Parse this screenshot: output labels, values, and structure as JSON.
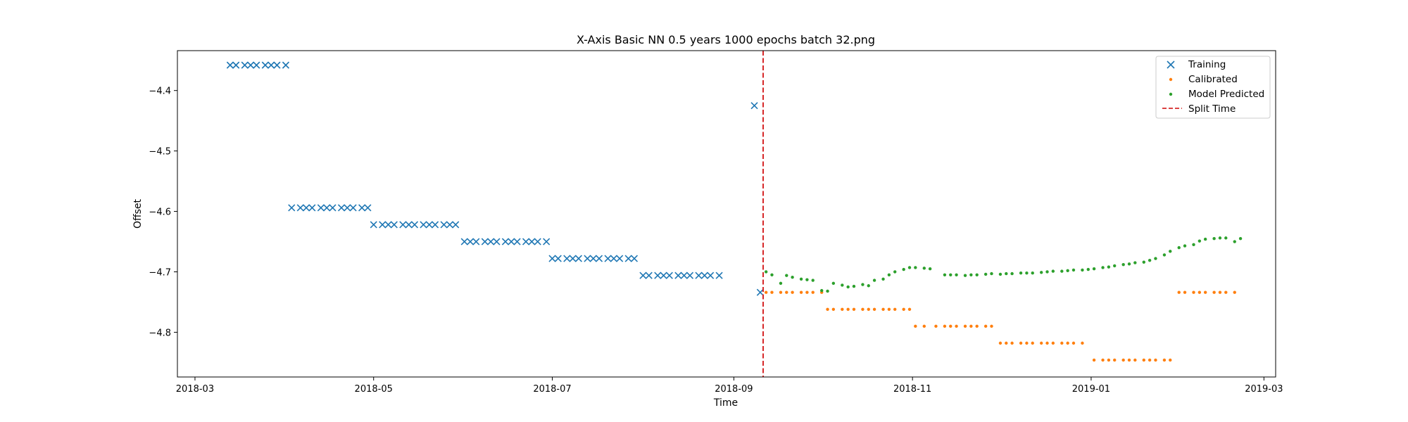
{
  "chart_data": {
    "type": "scatter",
    "title": "X-Axis Basic NN 0.5 years 1000 epochs batch 32.png",
    "xlabel": "Time",
    "ylabel": "Offset",
    "x_type": "date",
    "xlim": [
      "2018-02-23",
      "2019-03-05"
    ],
    "ylim": [
      -4.874,
      -4.334
    ],
    "x_ticks": [
      "2018-03-01",
      "2018-05-01",
      "2018-07-01",
      "2018-09-01",
      "2018-11-01",
      "2019-01-01",
      "2019-03-01"
    ],
    "x_tick_labels": [
      "2018-03",
      "2018-05",
      "2018-07",
      "2018-09",
      "2018-11",
      "2019-01",
      "2019-03"
    ],
    "y_ticks": [
      -4.4,
      -4.5,
      -4.6,
      -4.7,
      -4.8
    ],
    "y_tick_labels": [
      "−4.4",
      "−4.5",
      "−4.6",
      "−4.7",
      "−4.8"
    ],
    "grid": false,
    "legend_position": "top-right",
    "colors": {
      "Training": "#1f77b4",
      "Calibrated": "#ff7f0e",
      "Model Predicted": "#2ca02c",
      "Split Time": "#d62728"
    },
    "series": [
      {
        "name": "Training",
        "marker": "x",
        "points": [
          {
            "x": "2018-03-13",
            "y": -4.358
          },
          {
            "x": "2018-03-15",
            "y": -4.358
          },
          {
            "x": "2018-03-18",
            "y": -4.358
          },
          {
            "x": "2018-03-20",
            "y": -4.358
          },
          {
            "x": "2018-03-22",
            "y": -4.358
          },
          {
            "x": "2018-03-25",
            "y": -4.358
          },
          {
            "x": "2018-03-27",
            "y": -4.358
          },
          {
            "x": "2018-03-29",
            "y": -4.358
          },
          {
            "x": "2018-04-01",
            "y": -4.358
          },
          {
            "x": "2018-04-03",
            "y": -4.594
          },
          {
            "x": "2018-04-06",
            "y": -4.594
          },
          {
            "x": "2018-04-08",
            "y": -4.594
          },
          {
            "x": "2018-04-10",
            "y": -4.594
          },
          {
            "x": "2018-04-13",
            "y": -4.594
          },
          {
            "x": "2018-04-15",
            "y": -4.594
          },
          {
            "x": "2018-04-17",
            "y": -4.594
          },
          {
            "x": "2018-04-20",
            "y": -4.594
          },
          {
            "x": "2018-04-22",
            "y": -4.594
          },
          {
            "x": "2018-04-24",
            "y": -4.594
          },
          {
            "x": "2018-04-27",
            "y": -4.594
          },
          {
            "x": "2018-04-29",
            "y": -4.594
          },
          {
            "x": "2018-05-01",
            "y": -4.622
          },
          {
            "x": "2018-05-04",
            "y": -4.622
          },
          {
            "x": "2018-05-06",
            "y": -4.622
          },
          {
            "x": "2018-05-08",
            "y": -4.622
          },
          {
            "x": "2018-05-11",
            "y": -4.622
          },
          {
            "x": "2018-05-13",
            "y": -4.622
          },
          {
            "x": "2018-05-15",
            "y": -4.622
          },
          {
            "x": "2018-05-18",
            "y": -4.622
          },
          {
            "x": "2018-05-20",
            "y": -4.622
          },
          {
            "x": "2018-05-22",
            "y": -4.622
          },
          {
            "x": "2018-05-25",
            "y": -4.622
          },
          {
            "x": "2018-05-27",
            "y": -4.622
          },
          {
            "x": "2018-05-29",
            "y": -4.622
          },
          {
            "x": "2018-06-01",
            "y": -4.65
          },
          {
            "x": "2018-06-03",
            "y": -4.65
          },
          {
            "x": "2018-06-05",
            "y": -4.65
          },
          {
            "x": "2018-06-08",
            "y": -4.65
          },
          {
            "x": "2018-06-10",
            "y": -4.65
          },
          {
            "x": "2018-06-12",
            "y": -4.65
          },
          {
            "x": "2018-06-15",
            "y": -4.65
          },
          {
            "x": "2018-06-17",
            "y": -4.65
          },
          {
            "x": "2018-06-19",
            "y": -4.65
          },
          {
            "x": "2018-06-22",
            "y": -4.65
          },
          {
            "x": "2018-06-24",
            "y": -4.65
          },
          {
            "x": "2018-06-26",
            "y": -4.65
          },
          {
            "x": "2018-06-29",
            "y": -4.65
          },
          {
            "x": "2018-07-01",
            "y": -4.678
          },
          {
            "x": "2018-07-03",
            "y": -4.678
          },
          {
            "x": "2018-07-06",
            "y": -4.678
          },
          {
            "x": "2018-07-08",
            "y": -4.678
          },
          {
            "x": "2018-07-10",
            "y": -4.678
          },
          {
            "x": "2018-07-13",
            "y": -4.678
          },
          {
            "x": "2018-07-15",
            "y": -4.678
          },
          {
            "x": "2018-07-17",
            "y": -4.678
          },
          {
            "x": "2018-07-20",
            "y": -4.678
          },
          {
            "x": "2018-07-22",
            "y": -4.678
          },
          {
            "x": "2018-07-24",
            "y": -4.678
          },
          {
            "x": "2018-07-27",
            "y": -4.678
          },
          {
            "x": "2018-07-29",
            "y": -4.678
          },
          {
            "x": "2018-08-01",
            "y": -4.706
          },
          {
            "x": "2018-08-03",
            "y": -4.706
          },
          {
            "x": "2018-08-06",
            "y": -4.706
          },
          {
            "x": "2018-08-08",
            "y": -4.706
          },
          {
            "x": "2018-08-10",
            "y": -4.706
          },
          {
            "x": "2018-08-13",
            "y": -4.706
          },
          {
            "x": "2018-08-15",
            "y": -4.706
          },
          {
            "x": "2018-08-17",
            "y": -4.706
          },
          {
            "x": "2018-08-20",
            "y": -4.706
          },
          {
            "x": "2018-08-22",
            "y": -4.706
          },
          {
            "x": "2018-08-24",
            "y": -4.706
          },
          {
            "x": "2018-08-27",
            "y": -4.706
          },
          {
            "x": "2018-09-08",
            "y": -4.425
          },
          {
            "x": "2018-09-10",
            "y": -4.734
          }
        ]
      },
      {
        "name": "Calibrated",
        "marker": "dot",
        "points": [
          {
            "x": "2018-09-12",
            "y": -4.734
          },
          {
            "x": "2018-09-14",
            "y": -4.734
          },
          {
            "x": "2018-09-17",
            "y": -4.734
          },
          {
            "x": "2018-09-19",
            "y": -4.734
          },
          {
            "x": "2018-09-21",
            "y": -4.734
          },
          {
            "x": "2018-09-24",
            "y": -4.734
          },
          {
            "x": "2018-09-26",
            "y": -4.734
          },
          {
            "x": "2018-09-28",
            "y": -4.734
          },
          {
            "x": "2018-10-01",
            "y": -4.734
          },
          {
            "x": "2018-10-03",
            "y": -4.762
          },
          {
            "x": "2018-10-05",
            "y": -4.762
          },
          {
            "x": "2018-10-08",
            "y": -4.762
          },
          {
            "x": "2018-10-10",
            "y": -4.762
          },
          {
            "x": "2018-10-12",
            "y": -4.762
          },
          {
            "x": "2018-10-15",
            "y": -4.762
          },
          {
            "x": "2018-10-17",
            "y": -4.762
          },
          {
            "x": "2018-10-19",
            "y": -4.762
          },
          {
            "x": "2018-10-22",
            "y": -4.762
          },
          {
            "x": "2018-10-24",
            "y": -4.762
          },
          {
            "x": "2018-10-26",
            "y": -4.762
          },
          {
            "x": "2018-10-29",
            "y": -4.762
          },
          {
            "x": "2018-10-31",
            "y": -4.762
          },
          {
            "x": "2018-11-02",
            "y": -4.79
          },
          {
            "x": "2018-11-05",
            "y": -4.79
          },
          {
            "x": "2018-11-09",
            "y": -4.79
          },
          {
            "x": "2018-11-12",
            "y": -4.79
          },
          {
            "x": "2018-11-14",
            "y": -4.79
          },
          {
            "x": "2018-11-16",
            "y": -4.79
          },
          {
            "x": "2018-11-19",
            "y": -4.79
          },
          {
            "x": "2018-11-21",
            "y": -4.79
          },
          {
            "x": "2018-11-23",
            "y": -4.79
          },
          {
            "x": "2018-11-26",
            "y": -4.79
          },
          {
            "x": "2018-11-28",
            "y": -4.79
          },
          {
            "x": "2018-12-01",
            "y": -4.818
          },
          {
            "x": "2018-12-03",
            "y": -4.818
          },
          {
            "x": "2018-12-05",
            "y": -4.818
          },
          {
            "x": "2018-12-08",
            "y": -4.818
          },
          {
            "x": "2018-12-10",
            "y": -4.818
          },
          {
            "x": "2018-12-12",
            "y": -4.818
          },
          {
            "x": "2018-12-15",
            "y": -4.818
          },
          {
            "x": "2018-12-17",
            "y": -4.818
          },
          {
            "x": "2018-12-19",
            "y": -4.818
          },
          {
            "x": "2018-12-22",
            "y": -4.818
          },
          {
            "x": "2018-12-24",
            "y": -4.818
          },
          {
            "x": "2018-12-26",
            "y": -4.818
          },
          {
            "x": "2018-12-29",
            "y": -4.818
          },
          {
            "x": "2019-01-02",
            "y": -4.846
          },
          {
            "x": "2019-01-05",
            "y": -4.846
          },
          {
            "x": "2019-01-07",
            "y": -4.846
          },
          {
            "x": "2019-01-09",
            "y": -4.846
          },
          {
            "x": "2019-01-12",
            "y": -4.846
          },
          {
            "x": "2019-01-14",
            "y": -4.846
          },
          {
            "x": "2019-01-16",
            "y": -4.846
          },
          {
            "x": "2019-01-19",
            "y": -4.846
          },
          {
            "x": "2019-01-21",
            "y": -4.846
          },
          {
            "x": "2019-01-23",
            "y": -4.846
          },
          {
            "x": "2019-01-26",
            "y": -4.846
          },
          {
            "x": "2019-01-28",
            "y": -4.846
          },
          {
            "x": "2019-01-31",
            "y": -4.734
          },
          {
            "x": "2019-02-02",
            "y": -4.734
          },
          {
            "x": "2019-02-05",
            "y": -4.734
          },
          {
            "x": "2019-02-07",
            "y": -4.734
          },
          {
            "x": "2019-02-09",
            "y": -4.734
          },
          {
            "x": "2019-02-12",
            "y": -4.734
          },
          {
            "x": "2019-02-14",
            "y": -4.734
          },
          {
            "x": "2019-02-16",
            "y": -4.734
          },
          {
            "x": "2019-02-19",
            "y": -4.734
          }
        ]
      },
      {
        "name": "Model Predicted",
        "marker": "dot",
        "points": [
          {
            "x": "2018-09-12",
            "y": -4.7
          },
          {
            "x": "2018-09-14",
            "y": -4.705
          },
          {
            "x": "2018-09-17",
            "y": -4.719
          },
          {
            "x": "2018-09-19",
            "y": -4.706
          },
          {
            "x": "2018-09-21",
            "y": -4.709
          },
          {
            "x": "2018-09-24",
            "y": -4.712
          },
          {
            "x": "2018-09-26",
            "y": -4.713
          },
          {
            "x": "2018-09-28",
            "y": -4.714
          },
          {
            "x": "2018-10-01",
            "y": -4.731
          },
          {
            "x": "2018-10-03",
            "y": -4.732
          },
          {
            "x": "2018-10-05",
            "y": -4.719
          },
          {
            "x": "2018-10-08",
            "y": -4.722
          },
          {
            "x": "2018-10-10",
            "y": -4.725
          },
          {
            "x": "2018-10-12",
            "y": -4.724
          },
          {
            "x": "2018-10-15",
            "y": -4.721
          },
          {
            "x": "2018-10-17",
            "y": -4.723
          },
          {
            "x": "2018-10-19",
            "y": -4.714
          },
          {
            "x": "2018-10-22",
            "y": -4.712
          },
          {
            "x": "2018-10-24",
            "y": -4.705
          },
          {
            "x": "2018-10-26",
            "y": -4.7
          },
          {
            "x": "2018-10-29",
            "y": -4.696
          },
          {
            "x": "2018-10-31",
            "y": -4.693
          },
          {
            "x": "2018-11-02",
            "y": -4.693
          },
          {
            "x": "2018-11-05",
            "y": -4.694
          },
          {
            "x": "2018-11-07",
            "y": -4.695
          },
          {
            "x": "2018-11-12",
            "y": -4.705
          },
          {
            "x": "2018-11-14",
            "y": -4.705
          },
          {
            "x": "2018-11-16",
            "y": -4.705
          },
          {
            "x": "2018-11-19",
            "y": -4.706
          },
          {
            "x": "2018-11-21",
            "y": -4.705
          },
          {
            "x": "2018-11-23",
            "y": -4.705
          },
          {
            "x": "2018-11-26",
            "y": -4.704
          },
          {
            "x": "2018-11-28",
            "y": -4.703
          },
          {
            "x": "2018-12-01",
            "y": -4.704
          },
          {
            "x": "2018-12-03",
            "y": -4.703
          },
          {
            "x": "2018-12-05",
            "y": -4.703
          },
          {
            "x": "2018-12-08",
            "y": -4.702
          },
          {
            "x": "2018-12-10",
            "y": -4.702
          },
          {
            "x": "2018-12-12",
            "y": -4.702
          },
          {
            "x": "2018-12-15",
            "y": -4.701
          },
          {
            "x": "2018-12-17",
            "y": -4.7
          },
          {
            "x": "2018-12-19",
            "y": -4.699
          },
          {
            "x": "2018-12-22",
            "y": -4.699
          },
          {
            "x": "2018-12-24",
            "y": -4.698
          },
          {
            "x": "2018-12-26",
            "y": -4.697
          },
          {
            "x": "2018-12-29",
            "y": -4.697
          },
          {
            "x": "2018-12-31",
            "y": -4.696
          },
          {
            "x": "2019-01-02",
            "y": -4.695
          },
          {
            "x": "2019-01-05",
            "y": -4.693
          },
          {
            "x": "2019-01-07",
            "y": -4.692
          },
          {
            "x": "2019-01-09",
            "y": -4.69
          },
          {
            "x": "2019-01-12",
            "y": -4.688
          },
          {
            "x": "2019-01-14",
            "y": -4.687
          },
          {
            "x": "2019-01-16",
            "y": -4.685
          },
          {
            "x": "2019-01-19",
            "y": -4.684
          },
          {
            "x": "2019-01-21",
            "y": -4.681
          },
          {
            "x": "2019-01-23",
            "y": -4.678
          },
          {
            "x": "2019-01-26",
            "y": -4.672
          },
          {
            "x": "2019-01-28",
            "y": -4.666
          },
          {
            "x": "2019-01-31",
            "y": -4.66
          },
          {
            "x": "2019-02-02",
            "y": -4.657
          },
          {
            "x": "2019-02-05",
            "y": -4.655
          },
          {
            "x": "2019-02-07",
            "y": -4.649
          },
          {
            "x": "2019-02-09",
            "y": -4.646
          },
          {
            "x": "2019-02-12",
            "y": -4.645
          },
          {
            "x": "2019-02-14",
            "y": -4.644
          },
          {
            "x": "2019-02-16",
            "y": -4.644
          },
          {
            "x": "2019-02-19",
            "y": -4.65
          },
          {
            "x": "2019-02-21",
            "y": -4.645
          }
        ]
      }
    ],
    "vlines": [
      {
        "name": "Split Time",
        "x": "2018-09-11",
        "style": "dashed"
      }
    ],
    "legend": [
      "Training",
      "Calibrated",
      "Model Predicted",
      "Split Time"
    ]
  }
}
